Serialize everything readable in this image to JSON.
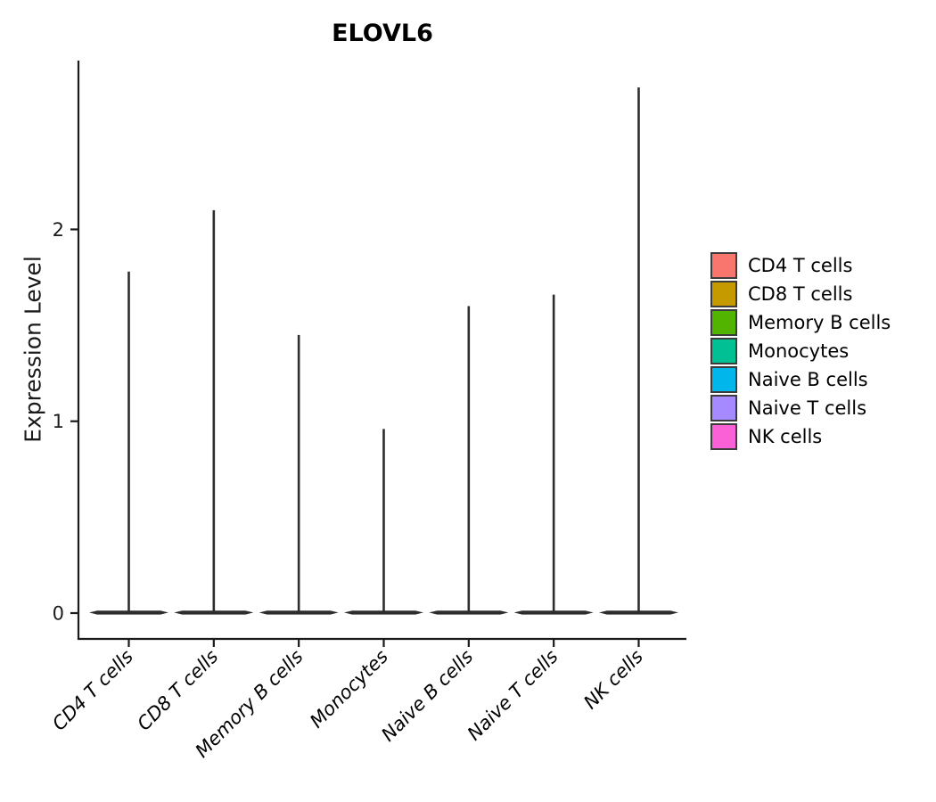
{
  "figure": {
    "background": "#FFFFFF"
  },
  "chart_data": {
    "type": "violin",
    "title": "ELOVL6",
    "ylabel": "Expression Level",
    "xlabel": "",
    "yticks": [
      0,
      1,
      2
    ],
    "ylim": [
      0,
      2.88
    ],
    "baseline_value": 0,
    "grid": "off",
    "legend_position": "right",
    "axis_color": "#1A1A1A",
    "violin_stroke_color": "#2D2D2D",
    "violins": [
      {
        "category": "CD4 T cells",
        "color": "#F8766D",
        "max_expression": 1.78,
        "density_peak_at": 0
      },
      {
        "category": "CD8 T cells",
        "color": "#C49A00",
        "max_expression": 2.1,
        "density_peak_at": 0
      },
      {
        "category": "Memory B cells",
        "color": "#53B400",
        "max_expression": 1.45,
        "density_peak_at": 0
      },
      {
        "category": "Monocytes",
        "color": "#00C094",
        "max_expression": 0.96,
        "density_peak_at": 0
      },
      {
        "category": "Naive B cells",
        "color": "#00B6EB",
        "max_expression": 1.6,
        "density_peak_at": 0
      },
      {
        "category": "Naive T cells",
        "color": "#A58AFF",
        "max_expression": 1.66,
        "density_peak_at": 0
      },
      {
        "category": "NK cells",
        "color": "#FB61D7",
        "max_expression": 2.74,
        "density_peak_at": 0
      }
    ]
  }
}
